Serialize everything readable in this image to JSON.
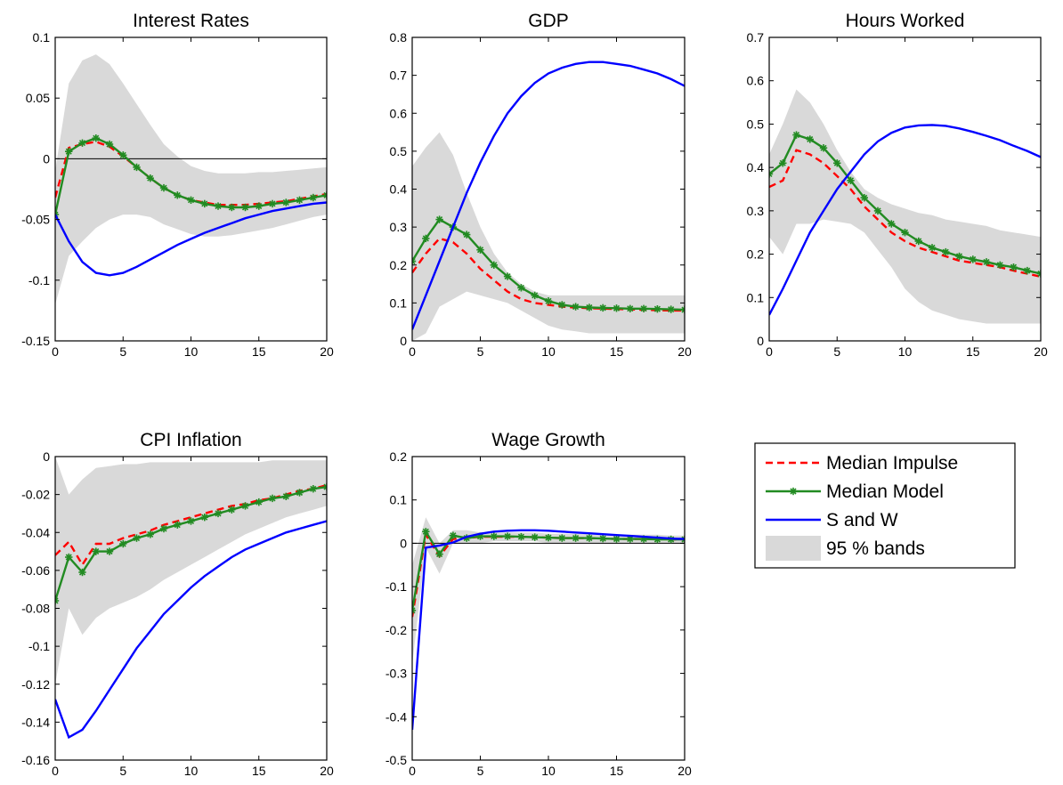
{
  "legend": {
    "items": [
      {
        "label": "Median Impulse",
        "color": "#ff0000",
        "style": "dashed"
      },
      {
        "label": "Median Model",
        "color": "#228b22",
        "style": "line-with-star-markers"
      },
      {
        "label": "S and W",
        "color": "#0000ff",
        "style": "solid"
      },
      {
        "label": "95 % bands",
        "color": "#d9d9d9",
        "style": "filled-area"
      }
    ]
  },
  "chart_data": [
    {
      "type": "line",
      "title": "Interest Rates",
      "xlim": [
        0,
        20
      ],
      "ylim": [
        -0.15,
        0.1
      ],
      "xticks": [
        0,
        5,
        10,
        15,
        20
      ],
      "xtick_labels": [
        "0",
        "5",
        "10",
        "15",
        "20"
      ],
      "yticks": [
        -0.15,
        -0.1,
        -0.05,
        0,
        0.05,
        0.1
      ],
      "ytick_labels": [
        "-0.15",
        "-0.1",
        "-0.05",
        "0",
        "0.05",
        "0.1"
      ],
      "zero_line": true,
      "x": [
        0,
        1,
        2,
        3,
        4,
        5,
        6,
        7,
        8,
        9,
        10,
        11,
        12,
        13,
        14,
        15,
        16,
        17,
        18,
        19,
        20
      ],
      "band_upper": [
        -0.01,
        0.062,
        0.081,
        0.086,
        0.078,
        0.062,
        0.045,
        0.028,
        0.012,
        0.002,
        -0.006,
        -0.01,
        -0.012,
        -0.012,
        -0.012,
        -0.011,
        -0.011,
        -0.01,
        -0.009,
        -0.008,
        -0.007
      ],
      "band_lower": [
        -0.12,
        -0.08,
        -0.068,
        -0.057,
        -0.05,
        -0.046,
        -0.046,
        -0.048,
        -0.054,
        -0.058,
        -0.062,
        -0.064,
        -0.064,
        -0.063,
        -0.061,
        -0.059,
        -0.057,
        -0.054,
        -0.051,
        -0.048,
        -0.046
      ],
      "series": [
        {
          "name": "Median Impulse",
          "values": [
            -0.032,
            0.009,
            0.012,
            0.014,
            0.01,
            0.002,
            -0.007,
            -0.016,
            -0.024,
            -0.03,
            -0.034,
            -0.036,
            -0.038,
            -0.038,
            -0.038,
            -0.037,
            -0.036,
            -0.035,
            -0.033,
            -0.031,
            -0.029
          ]
        },
        {
          "name": "Median Model",
          "values": [
            -0.046,
            0.006,
            0.013,
            0.017,
            0.012,
            0.003,
            -0.007,
            -0.016,
            -0.024,
            -0.03,
            -0.034,
            -0.037,
            -0.039,
            -0.04,
            -0.04,
            -0.039,
            -0.037,
            -0.036,
            -0.034,
            -0.032,
            -0.03
          ]
        },
        {
          "name": "S and W",
          "values": [
            -0.046,
            -0.068,
            -0.085,
            -0.094,
            -0.096,
            -0.094,
            -0.089,
            -0.083,
            -0.077,
            -0.071,
            -0.066,
            -0.061,
            -0.057,
            -0.053,
            -0.049,
            -0.046,
            -0.043,
            -0.041,
            -0.039,
            -0.037,
            -0.036
          ]
        }
      ]
    },
    {
      "type": "line",
      "title": "GDP",
      "xlim": [
        0,
        20
      ],
      "ylim": [
        0,
        0.8
      ],
      "xticks": [
        0,
        5,
        10,
        15,
        20
      ],
      "xtick_labels": [
        "0",
        "5",
        "10",
        "15",
        "20"
      ],
      "yticks": [
        0,
        0.1,
        0.2,
        0.3,
        0.4,
        0.5,
        0.6,
        0.7,
        0.8
      ],
      "ytick_labels": [
        "0",
        "0.1",
        "0.2",
        "0.3",
        "0.4",
        "0.5",
        "0.6",
        "0.7",
        "0.8"
      ],
      "zero_line": false,
      "x": [
        0,
        1,
        2,
        3,
        4,
        5,
        6,
        7,
        8,
        9,
        10,
        11,
        12,
        13,
        14,
        15,
        16,
        17,
        18,
        19,
        20
      ],
      "band_upper": [
        0.46,
        0.51,
        0.55,
        0.49,
        0.39,
        0.3,
        0.23,
        0.18,
        0.15,
        0.13,
        0.12,
        0.12,
        0.12,
        0.12,
        0.12,
        0.12,
        0.12,
        0.12,
        0.12,
        0.12,
        0.12
      ],
      "band_lower": [
        0.0,
        0.02,
        0.09,
        0.11,
        0.13,
        0.12,
        0.11,
        0.1,
        0.08,
        0.06,
        0.04,
        0.03,
        0.025,
        0.02,
        0.02,
        0.02,
        0.02,
        0.02,
        0.02,
        0.02,
        0.02
      ],
      "series": [
        {
          "name": "Median Impulse",
          "values": [
            0.18,
            0.23,
            0.27,
            0.26,
            0.23,
            0.19,
            0.16,
            0.13,
            0.11,
            0.1,
            0.095,
            0.09,
            0.088,
            0.086,
            0.085,
            0.084,
            0.083,
            0.082,
            0.081,
            0.08,
            0.08
          ]
        },
        {
          "name": "Median Model",
          "values": [
            0.21,
            0.27,
            0.32,
            0.3,
            0.28,
            0.24,
            0.2,
            0.17,
            0.14,
            0.12,
            0.105,
            0.095,
            0.09,
            0.088,
            0.087,
            0.086,
            0.085,
            0.085,
            0.084,
            0.083,
            0.082
          ]
        },
        {
          "name": "S and W",
          "values": [
            0.03,
            0.12,
            0.21,
            0.3,
            0.39,
            0.47,
            0.54,
            0.6,
            0.645,
            0.68,
            0.705,
            0.72,
            0.73,
            0.735,
            0.735,
            0.73,
            0.725,
            0.715,
            0.705,
            0.69,
            0.672
          ]
        }
      ]
    },
    {
      "type": "line",
      "title": "Hours Worked",
      "xlim": [
        0,
        20
      ],
      "ylim": [
        0,
        0.7
      ],
      "xticks": [
        0,
        5,
        10,
        15,
        20
      ],
      "xtick_labels": [
        "0",
        "5",
        "10",
        "15",
        "20"
      ],
      "yticks": [
        0,
        0.1,
        0.2,
        0.3,
        0.4,
        0.5,
        0.6,
        0.7
      ],
      "ytick_labels": [
        "0",
        "0.1",
        "0.2",
        "0.3",
        "0.4",
        "0.5",
        "0.6",
        "0.7"
      ],
      "zero_line": false,
      "x": [
        0,
        1,
        2,
        3,
        4,
        5,
        6,
        7,
        8,
        9,
        10,
        11,
        12,
        13,
        14,
        15,
        16,
        17,
        18,
        19,
        20
      ],
      "band_upper": [
        0.43,
        0.5,
        0.58,
        0.55,
        0.5,
        0.44,
        0.39,
        0.35,
        0.33,
        0.315,
        0.305,
        0.295,
        0.29,
        0.28,
        0.275,
        0.27,
        0.265,
        0.255,
        0.25,
        0.245,
        0.24
      ],
      "band_lower": [
        0.24,
        0.2,
        0.27,
        0.27,
        0.28,
        0.275,
        0.27,
        0.25,
        0.21,
        0.17,
        0.12,
        0.09,
        0.07,
        0.06,
        0.05,
        0.045,
        0.04,
        0.04,
        0.04,
        0.04,
        0.04
      ],
      "series": [
        {
          "name": "Median Impulse",
          "values": [
            0.355,
            0.37,
            0.44,
            0.43,
            0.41,
            0.38,
            0.35,
            0.31,
            0.28,
            0.25,
            0.23,
            0.215,
            0.205,
            0.195,
            0.185,
            0.18,
            0.175,
            0.17,
            0.162,
            0.155,
            0.148
          ]
        },
        {
          "name": "Median Model",
          "values": [
            0.385,
            0.41,
            0.475,
            0.465,
            0.445,
            0.41,
            0.37,
            0.33,
            0.3,
            0.27,
            0.25,
            0.23,
            0.215,
            0.205,
            0.195,
            0.188,
            0.182,
            0.175,
            0.17,
            0.162,
            0.155
          ]
        },
        {
          "name": "S and W",
          "values": [
            0.06,
            0.12,
            0.185,
            0.25,
            0.3,
            0.35,
            0.39,
            0.43,
            0.46,
            0.48,
            0.492,
            0.497,
            0.498,
            0.496,
            0.49,
            0.482,
            0.473,
            0.463,
            0.45,
            0.438,
            0.424
          ]
        }
      ]
    },
    {
      "type": "line",
      "title": "CPI Inflation",
      "xlim": [
        0,
        20
      ],
      "ylim": [
        -0.16,
        0
      ],
      "xticks": [
        0,
        5,
        10,
        15,
        20
      ],
      "xtick_labels": [
        "0",
        "5",
        "10",
        "15",
        "20"
      ],
      "yticks": [
        -0.16,
        -0.14,
        -0.12,
        -0.1,
        -0.08,
        -0.06,
        -0.04,
        -0.02,
        0
      ],
      "ytick_labels": [
        "-0.16",
        "-0.14",
        "-0.12",
        "-0.1",
        "-0.08",
        "-0.06",
        "-0.04",
        "-0.02",
        "0"
      ],
      "zero_line": false,
      "x": [
        0,
        1,
        2,
        3,
        4,
        5,
        6,
        7,
        8,
        9,
        10,
        11,
        12,
        13,
        14,
        15,
        16,
        17,
        18,
        19,
        20
      ],
      "band_upper": [
        0.0,
        -0.02,
        -0.012,
        -0.006,
        -0.005,
        -0.004,
        -0.004,
        -0.003,
        -0.003,
        -0.003,
        -0.003,
        -0.003,
        -0.003,
        -0.003,
        -0.003,
        -0.003,
        -0.002,
        -0.002,
        -0.002,
        -0.002,
        -0.002
      ],
      "band_lower": [
        -0.12,
        -0.08,
        -0.094,
        -0.085,
        -0.08,
        -0.077,
        -0.074,
        -0.07,
        -0.065,
        -0.061,
        -0.057,
        -0.053,
        -0.049,
        -0.045,
        -0.041,
        -0.038,
        -0.035,
        -0.032,
        -0.03,
        -0.028,
        -0.026
      ],
      "series": [
        {
          "name": "Median Impulse",
          "values": [
            -0.052,
            -0.045,
            -0.057,
            -0.046,
            -0.046,
            -0.043,
            -0.041,
            -0.039,
            -0.036,
            -0.034,
            -0.032,
            -0.03,
            -0.028,
            -0.026,
            -0.025,
            -0.023,
            -0.022,
            -0.02,
            -0.018,
            -0.017,
            -0.015
          ]
        },
        {
          "name": "Median Model",
          "values": [
            -0.076,
            -0.053,
            -0.061,
            -0.05,
            -0.05,
            -0.046,
            -0.043,
            -0.041,
            -0.038,
            -0.036,
            -0.034,
            -0.032,
            -0.03,
            -0.028,
            -0.026,
            -0.024,
            -0.022,
            -0.021,
            -0.019,
            -0.017,
            -0.016
          ]
        },
        {
          "name": "S and W",
          "values": [
            -0.128,
            -0.148,
            -0.144,
            -0.134,
            -0.123,
            -0.112,
            -0.101,
            -0.092,
            -0.083,
            -0.076,
            -0.069,
            -0.063,
            -0.058,
            -0.053,
            -0.049,
            -0.046,
            -0.043,
            -0.04,
            -0.038,
            -0.036,
            -0.034
          ]
        }
      ]
    },
    {
      "type": "line",
      "title": "Wage Growth",
      "xlim": [
        0,
        20
      ],
      "ylim": [
        -0.5,
        0.2
      ],
      "xticks": [
        0,
        5,
        10,
        15,
        20
      ],
      "xtick_labels": [
        "0",
        "5",
        "10",
        "15",
        "20"
      ],
      "yticks": [
        -0.5,
        -0.4,
        -0.3,
        -0.2,
        -0.1,
        0,
        0.1,
        0.2
      ],
      "ytick_labels": [
        "-0.5",
        "-0.4",
        "-0.3",
        "-0.2",
        "-0.1",
        "0",
        "0.1",
        "0.2"
      ],
      "zero_line": true,
      "x": [
        0,
        1,
        2,
        3,
        4,
        5,
        6,
        7,
        8,
        9,
        10,
        11,
        12,
        13,
        14,
        15,
        16,
        17,
        18,
        19,
        20
      ],
      "band_upper": [
        -0.05,
        0.06,
        0.0,
        0.03,
        0.03,
        0.025,
        0.025,
        0.025,
        0.025,
        0.025,
        0.022,
        0.022,
        0.022,
        0.022,
        0.02,
        0.02,
        0.02,
        0.02,
        0.02,
        0.018,
        0.018
      ],
      "band_lower": [
        -0.28,
        -0.01,
        -0.07,
        0.0,
        0.0,
        0.0,
        0.005,
        0.005,
        0.005,
        0.005,
        0.0,
        0.0,
        0.0,
        0.0,
        0.0,
        0.0,
        0.0,
        0.0,
        0.0,
        0.0,
        0.0
      ],
      "series": [
        {
          "name": "Median Impulse",
          "values": [
            -0.17,
            0.02,
            -0.03,
            0.01,
            0.012,
            0.015,
            0.015,
            0.015,
            0.015,
            0.014,
            0.013,
            0.012,
            0.012,
            0.012,
            0.011,
            0.01,
            0.01,
            0.01,
            0.01,
            0.009,
            0.009
          ]
        },
        {
          "name": "Median Model",
          "values": [
            -0.155,
            0.027,
            -0.025,
            0.018,
            0.012,
            0.016,
            0.016,
            0.016,
            0.015,
            0.014,
            0.013,
            0.012,
            0.012,
            0.012,
            0.011,
            0.01,
            0.01,
            0.01,
            0.009,
            0.009,
            0.009
          ]
        },
        {
          "name": "S and W",
          "values": [
            -0.43,
            -0.01,
            -0.005,
            0.002,
            0.015,
            0.022,
            0.027,
            0.029,
            0.03,
            0.03,
            0.029,
            0.027,
            0.025,
            0.023,
            0.021,
            0.019,
            0.017,
            0.015,
            0.013,
            0.011,
            0.01
          ]
        }
      ]
    }
  ]
}
